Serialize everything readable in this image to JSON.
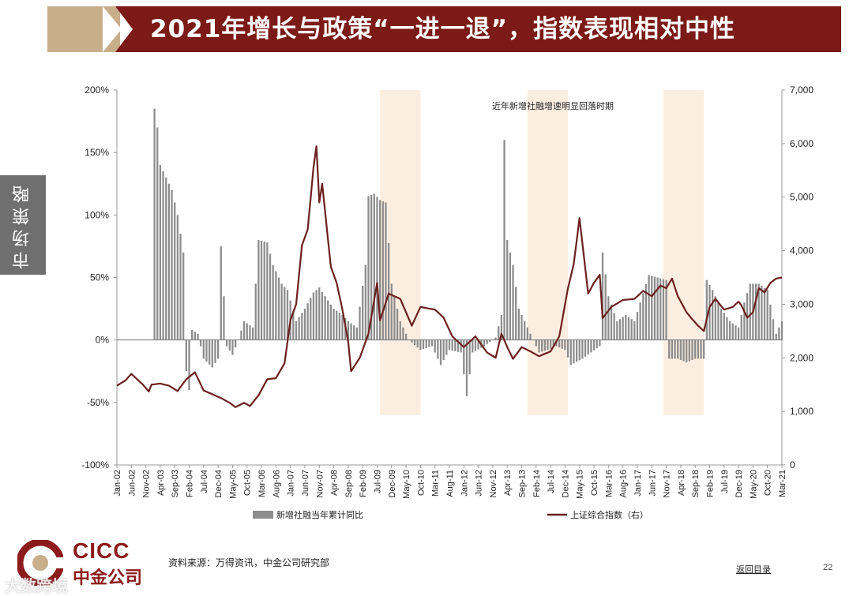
{
  "header": {
    "title": "2021年增长与政策“一进一退”，指数表现相对中性",
    "side_tab": "市场策略"
  },
  "footer": {
    "source": "资料来源：万得资讯，中金公司研究部",
    "back_link": "返回目录",
    "page_number": "22",
    "logo_en": "CICC",
    "logo_cn": "中金公司",
    "watermark": "大数跨境"
  },
  "colors": {
    "title_bg": "#7b1a16",
    "accent_tan": "#c9ae8c",
    "bar": "#8c8c8c",
    "line": "#6b1f1f",
    "shade": "#fbeee1"
  },
  "chart_data": {
    "type": "bar+line",
    "annotation": "近年新增社融增速明显回落时期",
    "left_axis": {
      "ylim": [
        -100,
        200
      ],
      "ticks": [
        "-100%",
        "-50%",
        "0%",
        "50%",
        "100%",
        "150%",
        "200%"
      ]
    },
    "right_axis": {
      "ylim": [
        0,
        7000
      ],
      "ticks": [
        "0",
        "1,000",
        "2,000",
        "3,000",
        "4,000",
        "5,000",
        "6,000",
        "7,000"
      ]
    },
    "x_ticks": [
      "Jan-02",
      "Jun-02",
      "Nov-02",
      "Apr-03",
      "Sep-03",
      "Feb-04",
      "Jul-04",
      "Dec-04",
      "May-05",
      "Oct-05",
      "Mar-06",
      "Aug-06",
      "Jan-07",
      "Jun-07",
      "Nov-07",
      "Apr-08",
      "Sep-08",
      "Feb-09",
      "Jul-09",
      "Dec-09",
      "May-10",
      "Oct-10",
      "Mar-11",
      "Aug-11",
      "Jan-12",
      "Jun-12",
      "Nov-12",
      "Apr-13",
      "Sep-13",
      "Feb-14",
      "Jul-14",
      "Dec-14",
      "May-15",
      "Oct-15",
      "Mar-16",
      "Aug-16",
      "Jan-17",
      "Jun-17",
      "Nov-17",
      "Apr-18",
      "Sep-18",
      "Feb-19",
      "Jul-19",
      "Dec-19",
      "May-20",
      "Oct-20",
      "Mar-21"
    ],
    "x_range": [
      "2002-01",
      "2021-03"
    ],
    "shaded_periods": [
      [
        "2009-08",
        "2010-10"
      ],
      [
        "2013-11",
        "2015-01"
      ],
      [
        "2017-10",
        "2018-12"
      ]
    ],
    "series": [
      {
        "name": "新增社融当年累计同比",
        "type": "bar",
        "axis": "left",
        "anchors": [
          [
            "2003-01",
            0
          ],
          [
            "2003-02",
            185
          ],
          [
            "2003-03",
            170
          ],
          [
            "2003-04",
            140
          ],
          [
            "2003-06",
            130
          ],
          [
            "2003-08",
            120
          ],
          [
            "2003-10",
            100
          ],
          [
            "2003-12",
            70
          ],
          [
            "2004-01",
            -25
          ],
          [
            "2004-02",
            -40
          ],
          [
            "2004-03",
            8
          ],
          [
            "2004-05",
            5
          ],
          [
            "2004-07",
            -15
          ],
          [
            "2004-10",
            -22
          ],
          [
            "2004-12",
            -15
          ],
          [
            "2005-01",
            75
          ],
          [
            "2005-03",
            -5
          ],
          [
            "2005-05",
            -12
          ],
          [
            "2005-07",
            0
          ],
          [
            "2005-09",
            15
          ],
          [
            "2005-12",
            10
          ],
          [
            "2006-02",
            80
          ],
          [
            "2006-05",
            78
          ],
          [
            "2006-07",
            60
          ],
          [
            "2006-10",
            45
          ],
          [
            "2006-12",
            40
          ],
          [
            "2007-03",
            15
          ],
          [
            "2007-06",
            25
          ],
          [
            "2007-09",
            38
          ],
          [
            "2007-11",
            42
          ],
          [
            "2008-01",
            35
          ],
          [
            "2008-04",
            25
          ],
          [
            "2008-07",
            20
          ],
          [
            "2008-09",
            15
          ],
          [
            "2008-12",
            10
          ],
          [
            "2009-03",
            60
          ],
          [
            "2009-04",
            115
          ],
          [
            "2009-06",
            117
          ],
          [
            "2009-08",
            112
          ],
          [
            "2009-10",
            110
          ],
          [
            "2009-12",
            45
          ],
          [
            "2010-03",
            15
          ],
          [
            "2010-06",
            0
          ],
          [
            "2010-10",
            -8
          ],
          [
            "2011-02",
            -5
          ],
          [
            "2011-05",
            -20
          ],
          [
            "2011-08",
            -8
          ],
          [
            "2011-12",
            -10
          ],
          [
            "2012-02",
            -45
          ],
          [
            "2012-04",
            -10
          ],
          [
            "2012-08",
            -5
          ],
          [
            "2012-12",
            2
          ],
          [
            "2013-02",
            20
          ],
          [
            "2013-03",
            160
          ],
          [
            "2013-04",
            80
          ],
          [
            "2013-06",
            60
          ],
          [
            "2013-08",
            25
          ],
          [
            "2013-12",
            5
          ],
          [
            "2014-03",
            -10
          ],
          [
            "2014-06",
            -8
          ],
          [
            "2014-09",
            -5
          ],
          [
            "2014-12",
            -8
          ],
          [
            "2015-02",
            -20
          ],
          [
            "2015-06",
            -15
          ],
          [
            "2015-12",
            -5
          ],
          [
            "2016-01",
            70
          ],
          [
            "2016-03",
            35
          ],
          [
            "2016-06",
            15
          ],
          [
            "2016-09",
            20
          ],
          [
            "2016-12",
            15
          ],
          [
            "2017-02",
            30
          ],
          [
            "2017-05",
            52
          ],
          [
            "2017-08",
            50
          ],
          [
            "2017-11",
            48
          ],
          [
            "2017-12",
            -15
          ],
          [
            "2018-03",
            -15
          ],
          [
            "2018-06",
            -18
          ],
          [
            "2018-09",
            -15
          ],
          [
            "2018-12",
            -15
          ],
          [
            "2019-01",
            48
          ],
          [
            "2019-03",
            40
          ],
          [
            "2019-06",
            25
          ],
          [
            "2019-09",
            15
          ],
          [
            "2019-12",
            10
          ],
          [
            "2020-02",
            30
          ],
          [
            "2020-04",
            45
          ],
          [
            "2020-07",
            45
          ],
          [
            "2020-10",
            40
          ],
          [
            "2021-01",
            5
          ],
          [
            "2021-03",
            15
          ]
        ]
      },
      {
        "name": "上证综合指数（右）",
        "type": "line",
        "axis": "right",
        "anchors": [
          [
            "2002-01",
            1480
          ],
          [
            "2002-04",
            1580
          ],
          [
            "2002-06",
            1700
          ],
          [
            "2002-08",
            1600
          ],
          [
            "2002-10",
            1500
          ],
          [
            "2002-12",
            1370
          ],
          [
            "2003-01",
            1500
          ],
          [
            "2003-04",
            1520
          ],
          [
            "2003-07",
            1480
          ],
          [
            "2003-10",
            1380
          ],
          [
            "2004-01",
            1600
          ],
          [
            "2004-04",
            1730
          ],
          [
            "2004-07",
            1390
          ],
          [
            "2004-10",
            1320
          ],
          [
            "2005-01",
            1250
          ],
          [
            "2005-04",
            1160
          ],
          [
            "2005-06",
            1080
          ],
          [
            "2005-09",
            1160
          ],
          [
            "2005-11",
            1100
          ],
          [
            "2006-02",
            1300
          ],
          [
            "2006-05",
            1600
          ],
          [
            "2006-08",
            1620
          ],
          [
            "2006-11",
            1900
          ],
          [
            "2007-01",
            2700
          ],
          [
            "2007-03",
            3000
          ],
          [
            "2007-05",
            4100
          ],
          [
            "2007-07",
            4400
          ],
          [
            "2007-09",
            5550
          ],
          [
            "2007-10",
            5950
          ],
          [
            "2007-11",
            4900
          ],
          [
            "2007-12",
            5250
          ],
          [
            "2008-03",
            3700
          ],
          [
            "2008-05",
            3400
          ],
          [
            "2008-07",
            2900
          ],
          [
            "2008-09",
            2300
          ],
          [
            "2008-10",
            1750
          ],
          [
            "2009-01",
            2000
          ],
          [
            "2009-04",
            2450
          ],
          [
            "2009-07",
            3400
          ],
          [
            "2009-08",
            2700
          ],
          [
            "2009-11",
            3200
          ],
          [
            "2010-03",
            3100
          ],
          [
            "2010-07",
            2600
          ],
          [
            "2010-10",
            2950
          ],
          [
            "2011-03",
            2900
          ],
          [
            "2011-06",
            2750
          ],
          [
            "2011-09",
            2400
          ],
          [
            "2012-01",
            2200
          ],
          [
            "2012-05",
            2400
          ],
          [
            "2012-09",
            2100
          ],
          [
            "2012-12",
            2000
          ],
          [
            "2013-02",
            2450
          ],
          [
            "2013-04",
            2200
          ],
          [
            "2013-06",
            1980
          ],
          [
            "2013-09",
            2200
          ],
          [
            "2013-12",
            2120
          ],
          [
            "2014-03",
            2030
          ],
          [
            "2014-07",
            2120
          ],
          [
            "2014-10",
            2400
          ],
          [
            "2015-01",
            3300
          ],
          [
            "2015-03",
            3750
          ],
          [
            "2015-05",
            4610
          ],
          [
            "2015-07",
            3660
          ],
          [
            "2015-08",
            3200
          ],
          [
            "2015-10",
            3400
          ],
          [
            "2015-12",
            3550
          ],
          [
            "2016-01",
            2740
          ],
          [
            "2016-04",
            2950
          ],
          [
            "2016-08",
            3080
          ],
          [
            "2016-12",
            3100
          ],
          [
            "2017-03",
            3250
          ],
          [
            "2017-06",
            3150
          ],
          [
            "2017-09",
            3350
          ],
          [
            "2017-11",
            3300
          ],
          [
            "2018-01",
            3480
          ],
          [
            "2018-03",
            3150
          ],
          [
            "2018-06",
            2850
          ],
          [
            "2018-08",
            2720
          ],
          [
            "2018-10",
            2600
          ],
          [
            "2018-12",
            2500
          ],
          [
            "2019-02",
            2950
          ],
          [
            "2019-04",
            3100
          ],
          [
            "2019-07",
            2900
          ],
          [
            "2019-10",
            2950
          ],
          [
            "2019-12",
            3050
          ],
          [
            "2020-01",
            2980
          ],
          [
            "2020-03",
            2750
          ],
          [
            "2020-05",
            2850
          ],
          [
            "2020-07",
            3300
          ],
          [
            "2020-09",
            3220
          ],
          [
            "2020-11",
            3400
          ],
          [
            "2021-01",
            3480
          ],
          [
            "2021-03",
            3500
          ]
        ]
      }
    ]
  }
}
